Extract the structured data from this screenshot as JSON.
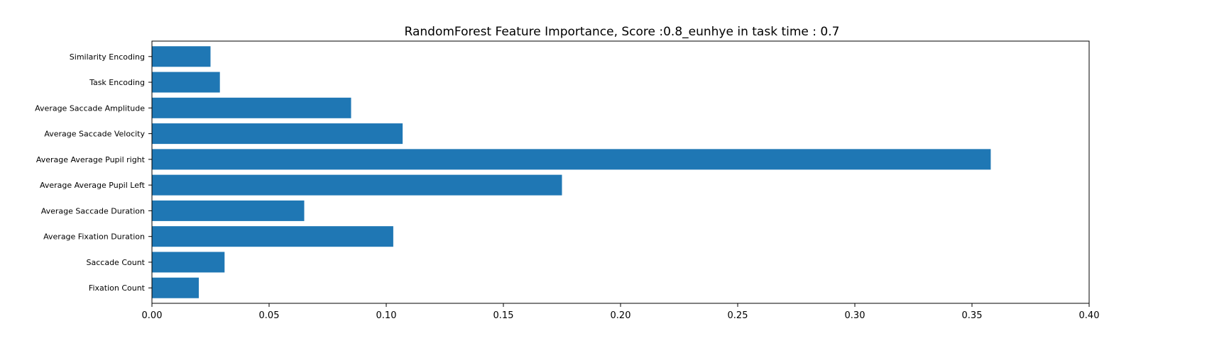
{
  "chart_data": {
    "type": "bar",
    "orientation": "horizontal",
    "title": "RandomForest Feature Importance, Score :0.8_eunhye in task time : 0.7",
    "xlabel": "",
    "ylabel": "",
    "categories": [
      "Fixation Count",
      "Saccade Count",
      "Average Fixation Duration",
      "Average Saccade Duration",
      "Average Average Pupil Left",
      "Average Average Pupil right",
      "Average Saccade Velocity",
      "Average Saccade Amplitude",
      "Task Encoding",
      "Similarity Encoding"
    ],
    "values": [
      0.02,
      0.031,
      0.103,
      0.065,
      0.175,
      0.358,
      0.107,
      0.085,
      0.029,
      0.025
    ],
    "xlim": [
      0,
      0.4
    ],
    "xticks": [
      "0.00",
      "0.05",
      "0.10",
      "0.15",
      "0.20",
      "0.25",
      "0.30",
      "0.35",
      "0.40"
    ],
    "grid": false,
    "bar_color": "#1f77b4"
  }
}
